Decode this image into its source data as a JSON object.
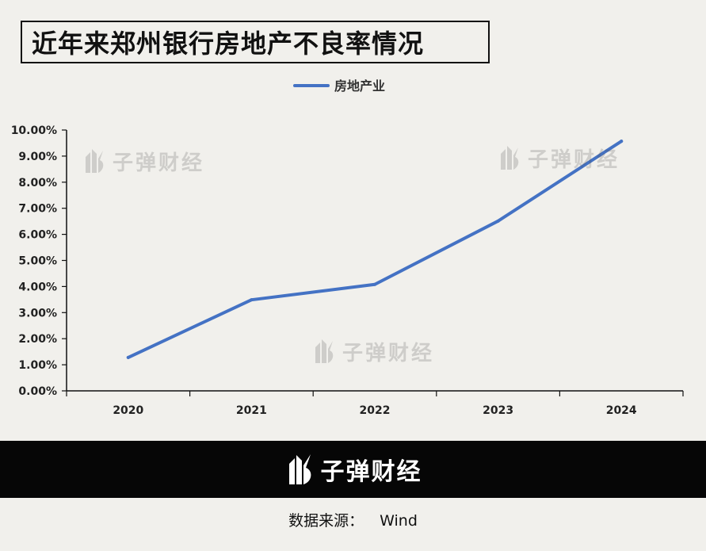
{
  "title": "近年来郑州银行房地产不良率情况",
  "watermark_text": "子弹财经",
  "brand": "子弹财经",
  "source": {
    "label": "数据来源：",
    "value": "Wind"
  },
  "colors": {
    "line": "#4472c4",
    "axis": "#111111",
    "background": "#f1f0ec",
    "footer": "#060606"
  },
  "chart_data": {
    "type": "line",
    "categories": [
      "2020",
      "2021",
      "2022",
      "2023",
      "2024"
    ],
    "series": [
      {
        "name": "房地产业",
        "values": [
          1.28,
          3.49,
          4.08,
          6.51,
          9.57
        ]
      }
    ],
    "ylim": [
      0,
      10
    ],
    "yticks": [
      0,
      1,
      2,
      3,
      4,
      5,
      6,
      7,
      8,
      9,
      10
    ],
    "ytick_labels": [
      "0.00%",
      "1.00%",
      "2.00%",
      "3.00%",
      "4.00%",
      "5.00%",
      "6.00%",
      "7.00%",
      "8.00%",
      "9.00%",
      "10.00%"
    ],
    "legend": "top-center",
    "grid": false,
    "xlabel": "",
    "ylabel": ""
  }
}
